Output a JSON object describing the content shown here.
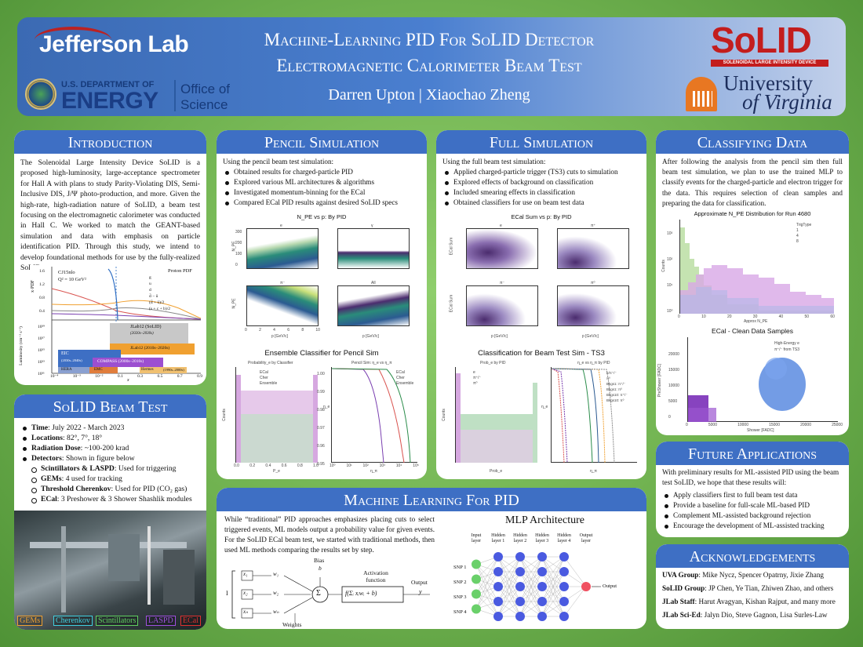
{
  "header": {
    "jlab": "Jefferson Lab",
    "doe_line1": "U.S. DEPARTMENT OF",
    "doe_line2": "ENERGY",
    "office": "Office of Science",
    "title_line1": "Machine-Learning PID For SoLID Detector",
    "title_line2": "Electromagnetic Calorimeter Beam Test",
    "authors": "Darren Upton | Xiaochao Zheng",
    "solid_logo": "SoLID",
    "solid_sub": "SOLENOIDAL LARGE INTENSITY DEVICE",
    "uva_line1": "University",
    "uva_line2": "of Virginia"
  },
  "intro": {
    "heading": "Introduction",
    "text": "The Solenoidal Large Intensity Device SoLID is a proposed high-luminosity, large-acceptance spectrometer for Hall A with plans to study Parity-Violating DIS, Semi-Inclusive DIS, J/Ψ photo-production, and more. Given the high-rate, high-radiation nature of SoLID, a beam test focusing on the electromagnetic calorimeter was conducted in Hall C. We worked to match the GEANT-based simulation and data with emphasis on particle identification PID. Through this study, we intend to develop foundational methods for use by the fully-realized SoLID.",
    "fig_pdf_label": "Proton PDF",
    "fig_cj": "CJ15nlo",
    "fig_q2": "Q² = 10 GeV²",
    "fig_ylabel_top": "x·PDF",
    "fig_ylabel_bot": "Luminosity (cm⁻² s⁻¹)",
    "fig_legend": [
      "g",
      "u",
      "d",
      "d̄ − ū",
      "(d̄ + ū)/2",
      "(s + c + b)/2"
    ],
    "fig_boxes": [
      "JLab12 (SoLID)",
      "(2020s–2030s)",
      "JLab12 (2010s–2020s)",
      "EIC",
      "(2030s–2040s)",
      "COMPASS (2000s–2010s)",
      "HERA",
      "EMC",
      "Hermes",
      "(1990s–2000s)"
    ],
    "fig_xticks": [
      "10⁻⁴",
      "10⁻³",
      "10⁻²",
      "0.1",
      "0.3",
      "0.5",
      "0.7",
      "0.9"
    ],
    "fig_xlabel": "x",
    "fig_yticks_top": [
      "1.6",
      "1.2",
      "0.8",
      "0.4"
    ],
    "fig_yticks_bot": [
      "10³⁹",
      "10³⁷",
      "10³⁵",
      "10³³",
      "10³¹"
    ]
  },
  "beamtest": {
    "heading": "SoLID Beam Test",
    "items": [
      {
        "label": "Time",
        "text": ": July 2022 - March 2023"
      },
      {
        "label": "Locations",
        "text": ": 82°, 7°, 18°"
      },
      {
        "label": "Radiation Dose",
        "text": ": ~100-200 krad"
      },
      {
        "label": "Detectors",
        "text": ": Shown in figure below"
      }
    ],
    "subitems": [
      {
        "label": "Scintillators & LASPD",
        "text": ": Used for triggering"
      },
      {
        "label": "GEMs",
        "text": ": 4 used for tracking"
      },
      {
        "label": "Threshold Cherenkov",
        "text": ": Used for PID (CO₂ gas)"
      },
      {
        "label": "ECal",
        "text": ": 3 Preshower & 3 Shower Shashlik modules"
      }
    ],
    "photo_labels": [
      "GEMs",
      "Cherenkov",
      "Scintillators",
      "LASPD",
      "ECal"
    ],
    "label_colors": [
      "#f0a030",
      "#40d0e0",
      "#60d060",
      "#a050e0",
      "#e03030"
    ]
  },
  "pencil": {
    "heading": "Pencil Simulation",
    "intro": "Using the pencil beam test simulation:",
    "items": [
      "Obtained results for charged-particle PID",
      "Explored various ML architectures & algorithms",
      "Investigated momentum-binning for the ECal",
      "Compared ECal PID results against desired SoLID specs"
    ],
    "fig1_title": "N_PE vs p: By PID",
    "fig1_panels": [
      "e",
      "γ",
      "π⁻",
      "All"
    ],
    "fig1_ylabel": "N_PE",
    "fig1_xlabel": "p [GeV/c]",
    "fig1_xticks": [
      "0",
      "2",
      "4",
      "6",
      "8",
      "10"
    ],
    "fig1_yticks": [
      "300",
      "200",
      "100",
      "0"
    ],
    "fig2_title": "Ensemble Classifier for Pencil Sim",
    "fig2_left_title": "Probability_e by Classifier",
    "fig2_right_title": "Pencil Sim: η_e vs η_π",
    "fig2_left_legend": [
      "ECal",
      "Cher",
      "Ensemble"
    ],
    "fig2_right_legend": [
      "ECal",
      "Cher",
      "Ensemble"
    ],
    "fig2_left_xlabel": "P_e",
    "fig2_left_ylabel": "Counts",
    "fig2_right_xlabel": "η_π",
    "fig2_right_ylabel": "η_e",
    "fig2_left_xticks": [
      "0.0",
      "0.2",
      "0.4",
      "0.6",
      "0.8",
      "1.0"
    ],
    "fig2_right_xticks": [
      "10⁰",
      "10¹",
      "10²",
      "10³",
      "10⁴",
      "10⁵"
    ],
    "fig2_right_yticks": [
      "1.00",
      "0.99",
      "0.98",
      "0.97",
      "0.96",
      "0.95"
    ]
  },
  "full": {
    "heading": "Full Simulation",
    "intro": "Using the full beam test simulation:",
    "items": [
      "Applied charged-particle trigger (TS3) cuts to simulation",
      "Explored effects of background on classification",
      "Included smearing effects in classification",
      "Obtained classifiers for use on beam test data"
    ],
    "fig1_title": "ECal Sum vs p: By PID",
    "fig1_panels": [
      "e",
      "π⁺",
      "π⁻",
      "π⁰"
    ],
    "fig1_ylabel": "ECal Sum",
    "fig1_xlabel": "p [GeV/c]",
    "fig2_title": "Classification for Beam Test Sim - TS3",
    "fig2_left_title": "Prob_e by PID",
    "fig2_right_title": "η_e vs η_π by PID",
    "fig2_left_legend": [
      "e",
      "π⁺/⁻",
      "π⁰"
    ],
    "fig2_right_legend": [
      "e/π⁺/⁻",
      "π⁰",
      "Bkgs1: π⁺/⁻",
      "Bkgs1: π⁰",
      "Bkgs10: π⁺/⁻",
      "Bkgs10: π⁰"
    ],
    "fig2_left_xlabel": "Prob_e",
    "fig2_left_ylabel": "Counts",
    "fig2_right_xlabel": "η_π",
    "fig2_right_ylabel": "η_e"
  },
  "classify": {
    "heading": "Classifying Data",
    "text": "After following the analysis from the pencil sim then full beam test simulation, we plan to use the trained MLP to classify events for the charged-particle and electron trigger for the data. This requires selection of clean samples and preparing the data for classification.",
    "fig1_title": "Approximate N_PE Distribution for Run 4680",
    "fig1_legend_title": "TrigType",
    "fig1_legend": [
      "1",
      "4",
      "8"
    ],
    "fig1_xlabel": "Approx N_PE",
    "fig1_ylabel": "Counts",
    "fig1_xticks": [
      "0",
      "10",
      "20",
      "30",
      "40",
      "50",
      "60"
    ],
    "fig1_yticks": [
      "10³",
      "10²",
      "10¹",
      "10⁰"
    ],
    "fig2_title": "ECal - Clean Data Samples",
    "fig2_legend": [
      "High-Energy e",
      "π⁺/⁻ from TS3"
    ],
    "fig2_xlabel": "Shower [FADC]",
    "fig2_ylabel": "PreShower [FADC]",
    "fig2_xticks": [
      "0",
      "5000",
      "10000",
      "15000",
      "20000",
      "25000"
    ],
    "fig2_yticks": [
      "20000",
      "15000",
      "10000",
      "5000",
      "0"
    ]
  },
  "ml": {
    "heading": "Machine Learning For PID",
    "text": "While “traditional” PID approaches emphasizes placing cuts to select triggered events, ML models output a probability value for given events. For the SoLID ECal beam test, we started with traditional methods, then used ML methods comparing the results set by step.",
    "perc_bias": "Bias",
    "perc_b": "b",
    "perc_activation": "Activation function",
    "perc_output": "Output",
    "perc_weights": "Weights",
    "perc_inputs": [
      "x₁",
      "x₂",
      "xₙ"
    ],
    "perc_w": [
      "w₁",
      "w₂",
      "wₙ"
    ],
    "perc_I": "I",
    "perc_func": "f(Σᵢ xᵢwᵢ + b)",
    "perc_y": "y",
    "mlp_title": "MLP Architecture",
    "mlp_layers": [
      "Input layer",
      "Hidden layer 1",
      "Hidden layer 2",
      "Hidden layer 3",
      "Hidden layer 4",
      "Output layer"
    ],
    "mlp_inputs": [
      "SNP 1",
      "SNP 2",
      "SNP 3",
      "SNP 4"
    ],
    "mlp_output": "Output"
  },
  "future": {
    "heading": "Future Applications",
    "intro": "With preliminary results for ML-assisted PID using the beam test SoLID, we hope that these results will:",
    "items": [
      "Apply classifiers first to full beam test data",
      "Provide a baseline for full-scale ML-based PID",
      "Complement ML-assisted background rejection",
      "Encourage the development of ML-assisted tracking"
    ]
  },
  "ack": {
    "heading": "Acknowledgements",
    "rows": [
      {
        "label": "UVA Group",
        "text": ": Mike Nycz, Spencer Opatrny, Jixie Zhang"
      },
      {
        "label": "SoLID Group",
        "text": ": JP Chen, Ye Tian, Zhiwen Zhao, and others"
      },
      {
        "label": "JLab Staff",
        "text": ": Harut Avagyan, Kishan Rajput, and many more"
      },
      {
        "label": "JLab Sci-Ed",
        "text": ": Jalyn Dio, Steve Gagnon, Lisa Surles-Law"
      }
    ]
  }
}
